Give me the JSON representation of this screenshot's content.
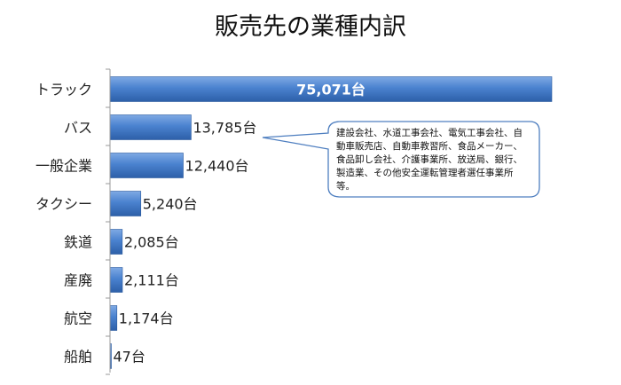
{
  "chart_data": {
    "type": "bar",
    "orientation": "horizontal",
    "title": "販売先の業種内訳",
    "categories": [
      "トラック",
      "バス",
      "一般企業",
      "タクシー",
      "鉄道",
      "産廃",
      "航空",
      "船舶"
    ],
    "values": [
      75071,
      13785,
      12440,
      5240,
      2085,
      2111,
      1174,
      47
    ],
    "value_labels": [
      "75,071台",
      "13,785台",
      "12,440台",
      "5,240台",
      "2,085台",
      "2,111台",
      "1,174台",
      "47台"
    ],
    "xlim": [
      0,
      75071
    ],
    "grid": false,
    "legend": "none",
    "bar_color": "#3f78c6",
    "annotation": {
      "attached_to": "バス",
      "text": "建設会社、水道工事会社、電気工事会社、自動車販売店、自動車教習所、食品メーカー、食品卸し会社、介護事業所、放送局、銀行、製造業、その他安全運転管理者選任事業所等。"
    }
  }
}
